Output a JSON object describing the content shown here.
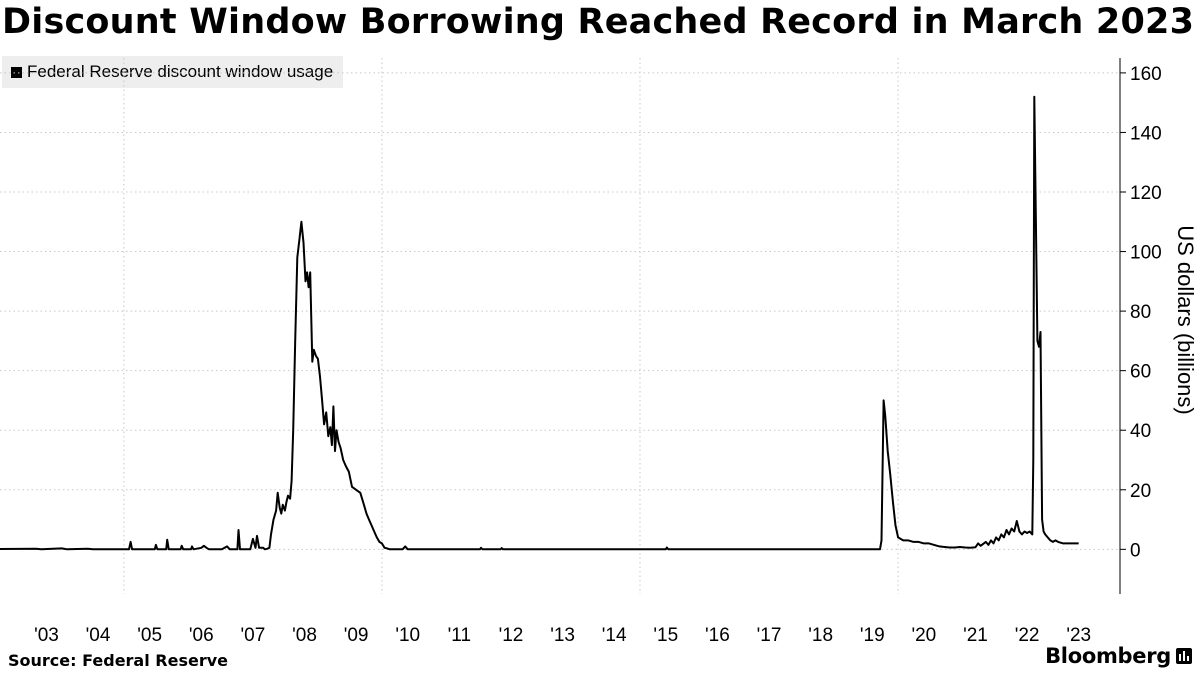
{
  "title": "Discount Window Borrowing Reached Record in March 2023",
  "source": "Source: Federal Reserve",
  "brand": "Bloomberg",
  "colors": {
    "line": "#000000",
    "grid": "#c8c8c8",
    "legend_bg": "#eeeeee"
  },
  "chart_data": {
    "type": "line",
    "x_unit": "year",
    "xlim": [
      2002.6,
      2024.3
    ],
    "ylim": [
      -15,
      165
    ],
    "ylabel": "US dollars (billions)",
    "y_axis_position": "right",
    "grid": true,
    "legend_position": "top-left",
    "yticks": [
      0,
      20,
      40,
      60,
      80,
      100,
      120,
      140,
      160
    ],
    "yticklabels": [
      "0",
      "20",
      "40",
      "60",
      "80",
      "100",
      "120",
      "140",
      "160"
    ],
    "xticks": [
      2003,
      2004,
      2005,
      2006,
      2007,
      2008,
      2009,
      2010,
      2011,
      2012,
      2013,
      2014,
      2015,
      2016,
      2017,
      2018,
      2019,
      2020,
      2021,
      2022,
      2023
    ],
    "xticklabels": [
      "'03",
      "'04",
      "'05",
      "'06",
      "'07",
      "'08",
      "'09",
      "'10",
      "'11",
      "'12",
      "'13",
      "'14",
      "'15",
      "'16",
      "'17",
      "'18",
      "'19",
      "'20",
      "'21",
      "'22",
      "'23"
    ],
    "series": [
      {
        "name": "Federal Reserve discount window usage",
        "color": "#000000",
        "points": [
          [
            2002.6,
            0.1
          ],
          [
            2003.3,
            0.2
          ],
          [
            2003.4,
            0.0
          ],
          [
            2003.8,
            0.3
          ],
          [
            2003.9,
            0.0
          ],
          [
            2004.3,
            0.2
          ],
          [
            2004.4,
            0.0
          ],
          [
            2005.1,
            0.0
          ],
          [
            2005.13,
            2.5
          ],
          [
            2005.16,
            0.0
          ],
          [
            2005.6,
            0.0
          ],
          [
            2005.62,
            1.5
          ],
          [
            2005.65,
            0.0
          ],
          [
            2005.82,
            0.0
          ],
          [
            2005.84,
            3.2
          ],
          [
            2005.87,
            0.0
          ],
          [
            2006.1,
            0.0
          ],
          [
            2006.12,
            1.2
          ],
          [
            2006.15,
            0.0
          ],
          [
            2006.3,
            0.0
          ],
          [
            2006.32,
            1.0
          ],
          [
            2006.35,
            0.0
          ],
          [
            2006.5,
            0.5
          ],
          [
            2006.55,
            1.2
          ],
          [
            2006.6,
            0.5
          ],
          [
            2006.65,
            0.0
          ],
          [
            2006.9,
            0.0
          ],
          [
            2007.0,
            1.0
          ],
          [
            2007.05,
            0.0
          ],
          [
            2007.2,
            0.0
          ],
          [
            2007.22,
            6.5
          ],
          [
            2007.25,
            0.0
          ],
          [
            2007.45,
            0.0
          ],
          [
            2007.5,
            3.5
          ],
          [
            2007.55,
            0.5
          ],
          [
            2007.58,
            4.5
          ],
          [
            2007.62,
            0.5
          ],
          [
            2007.7,
            0.5
          ],
          [
            2007.73,
            0.0
          ],
          [
            2007.78,
            0.2
          ],
          [
            2007.82,
            0.5
          ],
          [
            2007.85,
            5.0
          ],
          [
            2007.9,
            10.0
          ],
          [
            2007.95,
            13.0
          ],
          [
            2007.98,
            19.0
          ],
          [
            2008.02,
            14.0
          ],
          [
            2008.05,
            12.0
          ],
          [
            2008.08,
            15.0
          ],
          [
            2008.12,
            13.0
          ],
          [
            2008.15,
            16.0
          ],
          [
            2008.18,
            18.0
          ],
          [
            2008.22,
            17.0
          ],
          [
            2008.25,
            23.0
          ],
          [
            2008.28,
            40.0
          ],
          [
            2008.32,
            70.0
          ],
          [
            2008.36,
            98.0
          ],
          [
            2008.4,
            104.0
          ],
          [
            2008.44,
            110.0
          ],
          [
            2008.48,
            103.0
          ],
          [
            2008.52,
            90.0
          ],
          [
            2008.55,
            93.0
          ],
          [
            2008.58,
            88.0
          ],
          [
            2008.61,
            93.0
          ],
          [
            2008.65,
            63.0
          ],
          [
            2008.68,
            67.0
          ],
          [
            2008.72,
            65.0
          ],
          [
            2008.76,
            64.0
          ],
          [
            2008.8,
            58.0
          ],
          [
            2008.84,
            50.0
          ],
          [
            2008.88,
            42.0
          ],
          [
            2008.92,
            46.0
          ],
          [
            2008.96,
            38.0
          ],
          [
            2009.0,
            41.0
          ],
          [
            2009.03,
            35.0
          ],
          [
            2009.06,
            48.0
          ],
          [
            2009.09,
            33.0
          ],
          [
            2009.12,
            40.0
          ],
          [
            2009.16,
            36.0
          ],
          [
            2009.2,
            34.0
          ],
          [
            2009.25,
            30.0
          ],
          [
            2009.3,
            28.0
          ],
          [
            2009.36,
            26.0
          ],
          [
            2009.42,
            21.0
          ],
          [
            2009.5,
            20.0
          ],
          [
            2009.58,
            19.0
          ],
          [
            2009.65,
            15.0
          ],
          [
            2009.7,
            12.0
          ],
          [
            2009.75,
            10.0
          ],
          [
            2009.8,
            8.0
          ],
          [
            2009.85,
            6.0
          ],
          [
            2009.9,
            4.0
          ],
          [
            2009.95,
            2.5
          ],
          [
            2010.0,
            2.0
          ],
          [
            2010.05,
            0.5
          ],
          [
            2010.1,
            0.3
          ],
          [
            2010.15,
            0.0
          ],
          [
            2010.4,
            0.0
          ],
          [
            2010.45,
            1.0
          ],
          [
            2010.5,
            0.0
          ],
          [
            2011.9,
            0.0
          ],
          [
            2011.92,
            0.5
          ],
          [
            2011.95,
            0.0
          ],
          [
            2012.3,
            0.0
          ],
          [
            2012.32,
            0.4
          ],
          [
            2012.35,
            0.0
          ],
          [
            2015.5,
            0.0
          ],
          [
            2015.52,
            0.6
          ],
          [
            2015.55,
            0.0
          ],
          [
            2019.65,
            0.0
          ],
          [
            2019.68,
            3.0
          ],
          [
            2019.72,
            50.0
          ],
          [
            2019.75,
            45.0
          ],
          [
            2019.8,
            33.0
          ],
          [
            2019.85,
            25.0
          ],
          [
            2019.9,
            16.0
          ],
          [
            2019.95,
            8.0
          ],
          [
            2020.0,
            4.0
          ],
          [
            2020.1,
            3.0
          ],
          [
            2020.2,
            3.0
          ],
          [
            2020.3,
            2.5
          ],
          [
            2020.4,
            2.5
          ],
          [
            2020.5,
            2.0
          ],
          [
            2020.6,
            2.0
          ],
          [
            2020.7,
            1.5
          ],
          [
            2020.8,
            1.0
          ],
          [
            2020.9,
            0.8
          ],
          [
            2021.0,
            0.6
          ],
          [
            2021.1,
            0.6
          ],
          [
            2021.2,
            0.8
          ],
          [
            2021.3,
            0.6
          ],
          [
            2021.4,
            0.5
          ],
          [
            2021.5,
            0.7
          ],
          [
            2021.55,
            2.0
          ],
          [
            2021.6,
            1.2
          ],
          [
            2021.7,
            2.5
          ],
          [
            2021.75,
            1.5
          ],
          [
            2021.8,
            3.0
          ],
          [
            2021.85,
            2.0
          ],
          [
            2021.9,
            4.0
          ],
          [
            2021.95,
            3.0
          ],
          [
            2022.0,
            5.0
          ],
          [
            2022.05,
            4.0
          ],
          [
            2022.1,
            6.5
          ],
          [
            2022.15,
            5.0
          ],
          [
            2022.2,
            7.0
          ],
          [
            2022.25,
            6.0
          ],
          [
            2022.3,
            9.5
          ],
          [
            2022.35,
            6.0
          ],
          [
            2022.4,
            5.0
          ],
          [
            2022.45,
            6.0
          ],
          [
            2022.5,
            5.5
          ],
          [
            2022.55,
            6.0
          ],
          [
            2022.6,
            5.0
          ],
          [
            2022.62,
            30.0
          ],
          [
            2022.64,
            152.0
          ],
          [
            2022.67,
            110.0
          ],
          [
            2022.7,
            70.0
          ],
          [
            2022.73,
            68.0
          ],
          [
            2022.76,
            73.0
          ],
          [
            2022.79,
            10.0
          ],
          [
            2022.82,
            6.0
          ],
          [
            2022.85,
            5.0
          ],
          [
            2022.9,
            4.0
          ],
          [
            2022.95,
            3.0
          ],
          [
            2023.0,
            2.5
          ],
          [
            2023.05,
            3.0
          ],
          [
            2023.1,
            2.5
          ],
          [
            2023.2,
            2.0
          ],
          [
            2023.3,
            2.0
          ],
          [
            2023.4,
            2.0
          ],
          [
            2023.5,
            2.0
          ]
        ]
      }
    ]
  }
}
